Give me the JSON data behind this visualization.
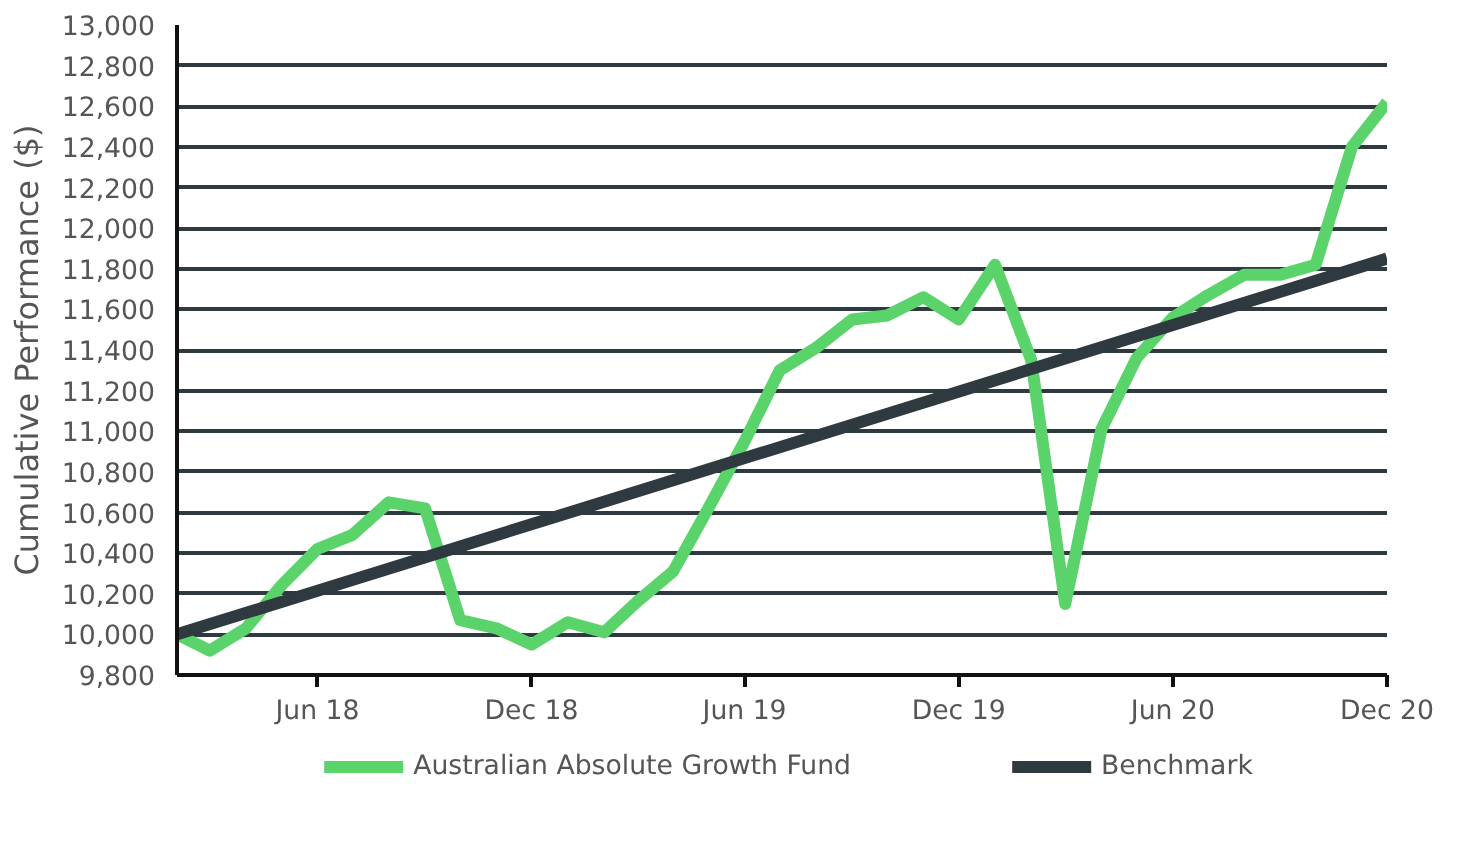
{
  "chart_data": {
    "type": "line",
    "ylabel": "Cumulative Performance ($)",
    "x": [
      "2018-02",
      "2018-03",
      "2018-04",
      "2018-05",
      "2018-06",
      "2018-07",
      "2018-08",
      "2018-09",
      "2018-10",
      "2018-11",
      "2018-12",
      "2019-01",
      "2019-02",
      "2019-03",
      "2019-04",
      "2019-05",
      "2019-06",
      "2019-07",
      "2019-08",
      "2019-09",
      "2019-10",
      "2019-11",
      "2019-12",
      "2020-01",
      "2020-02",
      "2020-03",
      "2020-04",
      "2020-05",
      "2020-06",
      "2020-07",
      "2020-08",
      "2020-09",
      "2020-10",
      "2020-11",
      "2020-12"
    ],
    "series": [
      {
        "name": "Australian Absolute Growth Fund",
        "color": "#5ad36a",
        "values": [
          10000,
          9920,
          10030,
          10240,
          10420,
          10490,
          10650,
          10620,
          10070,
          10030,
          9950,
          10060,
          10010,
          10160,
          10310,
          10620,
          10950,
          11300,
          11410,
          11550,
          11570,
          11660,
          11550,
          11820,
          11350,
          10150,
          11010,
          11360,
          11560,
          11670,
          11770,
          11770,
          11820,
          12400,
          12620
        ]
      },
      {
        "name": "Benchmark",
        "color": "#2e3a40",
        "x": [
          "2018-02",
          "2020-12"
        ],
        "values": [
          10000,
          11850
        ]
      }
    ],
    "xlim": [
      "2018-02",
      "2020-12"
    ],
    "xticks": [
      {
        "value": "2018-06",
        "label": "Jun 18"
      },
      {
        "value": "2018-12",
        "label": "Dec 18"
      },
      {
        "value": "2019-06",
        "label": "Jun 19"
      },
      {
        "value": "2019-12",
        "label": "Dec 19"
      },
      {
        "value": "2020-06",
        "label": "Jun 20"
      },
      {
        "value": "2020-12",
        "label": "Dec 20"
      }
    ],
    "ylim": [
      9800,
      13000
    ],
    "yticks": [
      {
        "value": 9800,
        "label": "9,800"
      },
      {
        "value": 10000,
        "label": "10,000"
      },
      {
        "value": 10200,
        "label": "10,200"
      },
      {
        "value": 10400,
        "label": "10,400"
      },
      {
        "value": 10600,
        "label": "10,600"
      },
      {
        "value": 10800,
        "label": "10,800"
      },
      {
        "value": 11000,
        "label": "11,000"
      },
      {
        "value": 11200,
        "label": "11,200"
      },
      {
        "value": 11400,
        "label": "11,400"
      },
      {
        "value": 11600,
        "label": "11,600"
      },
      {
        "value": 11800,
        "label": "11,800"
      },
      {
        "value": 12000,
        "label": "12,000"
      },
      {
        "value": 12200,
        "label": "12,200"
      },
      {
        "value": 12400,
        "label": "12,400"
      },
      {
        "value": 12600,
        "label": "12,600"
      },
      {
        "value": 12800,
        "label": "12,800"
      },
      {
        "value": 13000,
        "label": "13,000"
      }
    ],
    "grid": "y",
    "legend": "bottom",
    "marker": "none",
    "line_style": "solid"
  }
}
